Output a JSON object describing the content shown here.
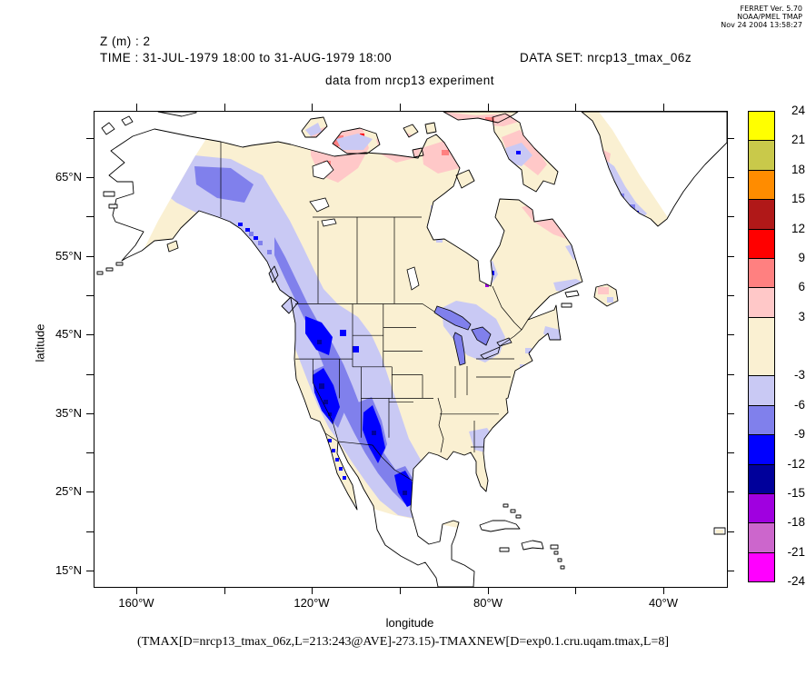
{
  "credit": {
    "line1": "FERRET Ver. 5.70",
    "line2": "NOAA/PMEL TMAP",
    "line3": "Nov 24 2004 13:58:27"
  },
  "titles": {
    "z": "Z (m) : 2",
    "time": "TIME : 31-JUL-1979 18:00 to 31-AUG-1979 18:00",
    "dataset": "DATA SET: nrcp13_tmax_06z",
    "subtitle": "data from nrcp13 experiment"
  },
  "axes": {
    "x_label": "longitude",
    "y_label": "latitude",
    "lon_major": [
      {
        "value": -160,
        "label": "160°W"
      },
      {
        "value": -120,
        "label": "120°W"
      },
      {
        "value": -80,
        "label": "80°W"
      },
      {
        "value": -40,
        "label": "40°W"
      }
    ],
    "lon_minor": [
      -140,
      -100,
      -60
    ],
    "lat_major": [
      {
        "value": 65,
        "label": "65°N"
      },
      {
        "value": 55,
        "label": "55°N"
      },
      {
        "value": 45,
        "label": "45°N"
      },
      {
        "value": 35,
        "label": "35°N"
      },
      {
        "value": 25,
        "label": "25°N"
      },
      {
        "value": 15,
        "label": "15°N"
      }
    ],
    "lat_minor": [
      70,
      60,
      50,
      40,
      30,
      20
    ]
  },
  "colorbar": {
    "cells": [
      {
        "color": "#FFFF00",
        "span": 1
      },
      {
        "color": "#C9C94A",
        "span": 1
      },
      {
        "color": "#FF8C00",
        "span": 1
      },
      {
        "color": "#B01818",
        "span": 1
      },
      {
        "color": "#FF0000",
        "span": 1
      },
      {
        "color": "#FF8080",
        "span": 1
      },
      {
        "color": "#FFC8C8",
        "span": 1
      },
      {
        "color": "#FAF0D2",
        "span": 2
      },
      {
        "color": "#C9C9F4",
        "span": 1
      },
      {
        "color": "#8080EC",
        "span": 1
      },
      {
        "color": "#0000FF",
        "span": 1
      },
      {
        "color": "#00009B",
        "span": 1
      },
      {
        "color": "#A000E0",
        "span": 1
      },
      {
        "color": "#CC66CC",
        "span": 1
      },
      {
        "color": "#FF00FF",
        "span": 1
      }
    ],
    "labels": [
      {
        "text": "24",
        "u": 0
      },
      {
        "text": "21",
        "u": 1
      },
      {
        "text": "18",
        "u": 2
      },
      {
        "text": "15",
        "u": 3
      },
      {
        "text": "12",
        "u": 4
      },
      {
        "text": "9",
        "u": 5
      },
      {
        "text": "6",
        "u": 6
      },
      {
        "text": "3",
        "u": 7
      },
      {
        "text": "-3",
        "u": 9
      },
      {
        "text": "-6",
        "u": 10
      },
      {
        "text": "-9",
        "u": 11
      },
      {
        "text": "-12",
        "u": 12
      },
      {
        "text": "-15",
        "u": 13
      },
      {
        "text": "-18",
        "u": 14
      },
      {
        "text": "-21",
        "u": 15
      },
      {
        "text": "-24",
        "u": 16
      }
    ]
  },
  "caption": "(TMAX[D=nrcp13_tmax_06z,L=213:243@AVE]-273.15)-TMAXNEW[D=exp0.1.cru.uqam.tmax,L=8]",
  "chart_data": {
    "type": "heatmap",
    "subtype": "filled_contour_map",
    "title": "data from nrcp13 experiment",
    "annotations": [
      "Z (m) : 2",
      "TIME : 31-JUL-1979 18:00 to 31-AUG-1979 18:00",
      "DATA SET: nrcp13_tmax_06z"
    ],
    "expression": "(TMAX[D=nrcp13_tmax_06z,L=213:243@AVE]-273.15)-TMAXNEW[D=exp0.1.cru.uqam.tmax,L=8]",
    "region": "North America",
    "xlabel": "longitude",
    "ylabel": "latitude",
    "xlim": [
      "170°W",
      "26°W"
    ],
    "ylim": [
      "13°N",
      "73°N"
    ],
    "grid": false,
    "legend_position": "right-colorbar",
    "levels": [
      -24,
      -21,
      -18,
      -15,
      -12,
      -9,
      -6,
      -3,
      3,
      6,
      9,
      12,
      15,
      18,
      21,
      24
    ],
    "palette_low_to_high": [
      "#FF00FF",
      "#CC66CC",
      "#A000E0",
      "#00009B",
      "#0000FF",
      "#8080EC",
      "#C9C9F4",
      "#FAF0D2",
      "#FFC8C8",
      "#FF8080",
      "#FF0000",
      "#B01818",
      "#FF8C00",
      "#C9C94A",
      "#FFFF00"
    ],
    "features": [
      "Strong negative differences (-6 to -15) over the western US cordillera: Pacific Northwest, Sierra Nevada, Great Basin, Rockies, extending into northern Mexico",
      "Small navy (-12 to -15) cores over Nevada, Idaho, Colorado and northern Mexico",
      "Weak negative band (-3 to -6) along the band margins, Alaska interior, Great Lakes shores and parts of the US Southeast",
      "Near-zero values (-3 to +3, cream) over most of central and eastern North America",
      "Positive differences (+3 to +9, pink/salmon/red patches) over Arctic Canada, Baffin Island, Labrador, northern Quebec and Newfoundland",
      "White = no data: oceans, Hudson Bay, Gulf of Mexico, and land outside the curved regional model domain (NW Alaska, southern Mexico, Caribbean, NE Greenland)"
    ]
  }
}
